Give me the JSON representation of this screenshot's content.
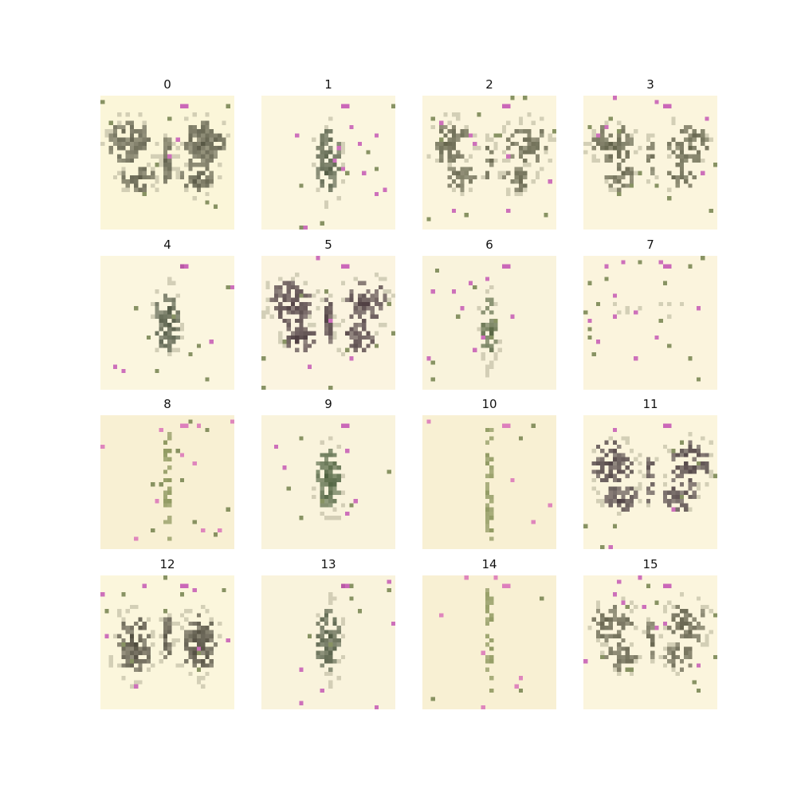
{
  "figure": {
    "panels": [
      {
        "title": "0",
        "subject": "butterfly",
        "bg": "#fbf6d9",
        "ink": "#4a4a38",
        "accent": "#c24fb1"
      },
      {
        "title": "1",
        "subject": "beetle",
        "bg": "#fbf6df",
        "ink": "#3f4a33",
        "accent": "#c24fb1"
      },
      {
        "title": "2",
        "subject": "moth",
        "bg": "#fbf5dd",
        "ink": "#4b4c34",
        "accent": "#c24fb1"
      },
      {
        "title": "3",
        "subject": "moth",
        "bg": "#fbf5dd",
        "ink": "#4b4c34",
        "accent": "#c24fb1"
      },
      {
        "title": "4",
        "subject": "beetle",
        "bg": "#fbf6df",
        "ink": "#3e4733",
        "accent": "#c24fb1"
      },
      {
        "title": "5",
        "subject": "butterfly",
        "bg": "#fbf4e0",
        "ink": "#3b2a30",
        "accent": "#c24fb1"
      },
      {
        "title": "6",
        "subject": "mantis",
        "bg": "#f9f3dc",
        "ink": "#4a5a36",
        "accent": "#c24fb1"
      },
      {
        "title": "7",
        "subject": "faint",
        "bg": "#fbf4dd",
        "ink": "#9a9583",
        "accent": "#c24fb1"
      },
      {
        "title": "8",
        "subject": "stick",
        "bg": "#f8f0d3",
        "ink": "#6e7d3c",
        "accent": "#d86bb7"
      },
      {
        "title": "9",
        "subject": "beetle",
        "bg": "#f9f3dc",
        "ink": "#3e5430",
        "accent": "#c24fb1"
      },
      {
        "title": "10",
        "subject": "stick",
        "bg": "#f8f0d3",
        "ink": "#6e7d3c",
        "accent": "#d86bb7"
      },
      {
        "title": "11",
        "subject": "butterfly",
        "bg": "#fbf5dd",
        "ink": "#3d3035",
        "accent": "#c24fb1"
      },
      {
        "title": "12",
        "subject": "wings",
        "bg": "#fbf6dc",
        "ink": "#3f3b2f",
        "accent": "#c24fb1"
      },
      {
        "title": "13",
        "subject": "beetle",
        "bg": "#f9f3dc",
        "ink": "#3e4a33",
        "accent": "#c24fb1"
      },
      {
        "title": "14",
        "subject": "stick",
        "bg": "#f8f0d3",
        "ink": "#6e7d3c",
        "accent": "#d86bb7"
      },
      {
        "title": "15",
        "subject": "moth",
        "bg": "#fbf5dd",
        "ink": "#4b4a35",
        "accent": "#c24fb1"
      }
    ]
  }
}
